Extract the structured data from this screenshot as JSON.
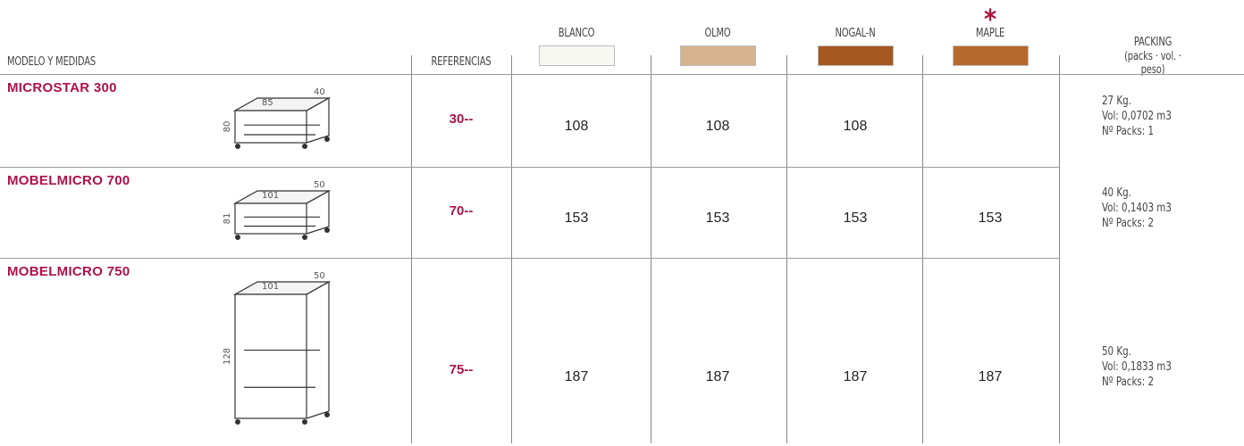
{
  "header": {
    "model_label": "MODELO Y MEDIDAS",
    "references_label": "REFERENCIAS",
    "finishes": [
      {
        "name": "BLANCO",
        "color": "#f8f8f3"
      },
      {
        "name": "OLMO",
        "color": "#d5b38d"
      },
      {
        "name": "NOGAL-N",
        "color": "#a5581f"
      },
      {
        "name": "MAPLE",
        "color": "#b7692b"
      }
    ],
    "maple_mark": "*",
    "packing_title": "PACKING",
    "packing_subtitle": "(packs · vol. · peso)"
  },
  "rows": [
    {
      "name": "MICROSTAR 300",
      "dimensions": {
        "width": "85",
        "depth": "40",
        "height": "80"
      },
      "reference": "30--",
      "prices": [
        108,
        108,
        108,
        null
      ],
      "packing": [
        "27 Kg.",
        "Vol: 0,0702 m3",
        "Nº Packs: 1"
      ]
    },
    {
      "name": "MOBELMICRO 700",
      "dimensions": {
        "width": "101",
        "depth": "50",
        "height": "81"
      },
      "reference": "70--",
      "prices": [
        153,
        153,
        153,
        153
      ],
      "packing": [
        "40 Kg.",
        "Vol: 0,1403 m3",
        "Nº Packs: 2"
      ]
    },
    {
      "name": "MOBELMICRO 750",
      "dimensions": {
        "width": "101",
        "depth": "50",
        "height": "128"
      },
      "reference": "75--",
      "prices": [
        187,
        187,
        187,
        187
      ],
      "packing": [
        "50 Kg.",
        "Vol: 0,1833 m3",
        "Nº Packs: 2"
      ]
    }
  ]
}
